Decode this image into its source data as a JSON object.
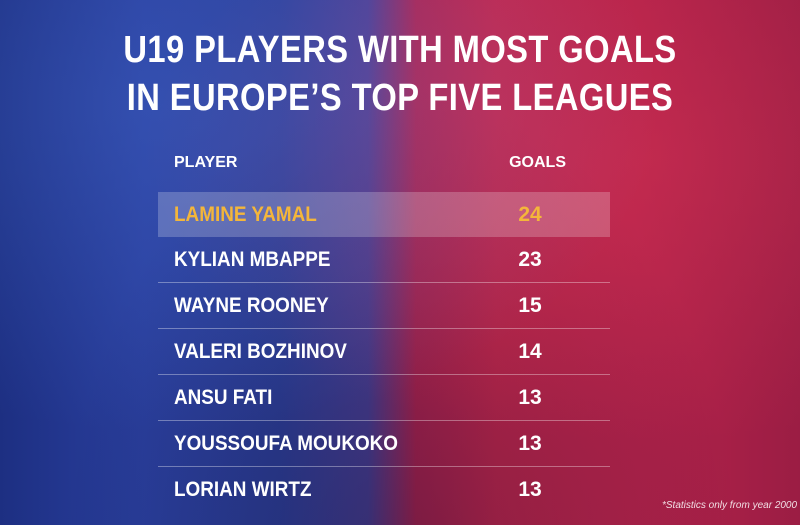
{
  "title": {
    "line1": "U19 PLAYERS WITH MOST GOALS",
    "line2": "IN EUROPE’S TOP FIVE LEAGUES"
  },
  "table": {
    "header_player": "PLAYER",
    "header_goals": "GOALS"
  },
  "chart_data": {
    "type": "table",
    "title": "U19 PLAYERS WITH MOST GOALS IN EUROPE’S TOP FIVE LEAGUES",
    "columns": [
      "PLAYER",
      "GOALS"
    ],
    "rows": [
      {
        "player": "LAMINE YAMAL",
        "goals": "24"
      },
      {
        "player": "KYLIAN MBAPPE",
        "goals": "23"
      },
      {
        "player": "WAYNE ROONEY",
        "goals": "15"
      },
      {
        "player": "VALERI BOZHINOV",
        "goals": "14"
      },
      {
        "player": "ANSU FATI",
        "goals": "13"
      },
      {
        "player": "YOUSSOUFA MOUKOKO",
        "goals": "13"
      },
      {
        "player": "LORIAN WIRTZ",
        "goals": "13"
      }
    ],
    "highlighted_row": 0
  },
  "colors": {
    "highlight_text": "#f4b63a",
    "text": "#ffffff",
    "blue": "#2a3f9e",
    "red": "#c2264c"
  },
  "footnote": "*Statistics only from year 2000"
}
